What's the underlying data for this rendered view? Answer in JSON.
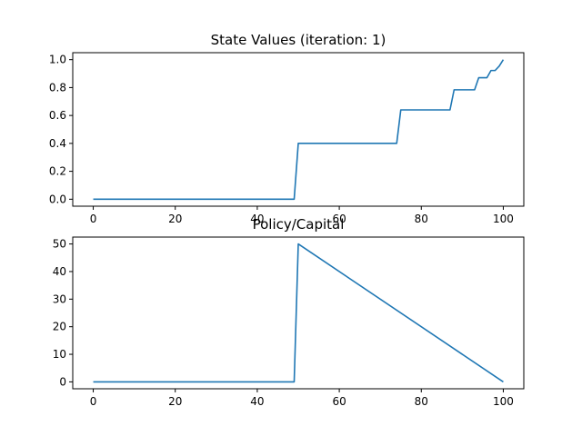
{
  "chart_data": [
    {
      "type": "line",
      "title": "State Values (iteration: 1)",
      "xlabel": "",
      "ylabel": "",
      "xlim": [
        -5,
        105
      ],
      "ylim": [
        -0.05,
        1.05
      ],
      "xticks": [
        0,
        20,
        40,
        60,
        80,
        100
      ],
      "xtick_labels": [
        "0",
        "20",
        "40",
        "60",
        "80",
        "100"
      ],
      "yticks": [
        0.0,
        0.2,
        0.4,
        0.6,
        0.8,
        1.0
      ],
      "ytick_labels": [
        "0.0",
        "0.2",
        "0.4",
        "0.6",
        "0.8",
        "1.0"
      ],
      "grid": false,
      "series": [
        {
          "color": "#1f77b4",
          "x": [
            0,
            49,
            50,
            74,
            75,
            87,
            88,
            93,
            94,
            96,
            97,
            98,
            99,
            100
          ],
          "y": [
            0,
            0,
            0.4,
            0.4,
            0.64,
            0.64,
            0.784,
            0.784,
            0.8704,
            0.8704,
            0.92224,
            0.92224,
            0.953344,
            1.0
          ]
        }
      ]
    },
    {
      "type": "line",
      "title": "Policy/Capital",
      "xlabel": "",
      "ylabel": "",
      "xlim": [
        -5,
        105
      ],
      "ylim": [
        -2.5,
        52.5
      ],
      "xticks": [
        0,
        20,
        40,
        60,
        80,
        100
      ],
      "xtick_labels": [
        "0",
        "20",
        "40",
        "60",
        "80",
        "100"
      ],
      "yticks": [
        0,
        10,
        20,
        30,
        40,
        50
      ],
      "ytick_labels": [
        "0",
        "10",
        "20",
        "30",
        "40",
        "50"
      ],
      "grid": false,
      "series": [
        {
          "color": "#1f77b4",
          "x": [
            0,
            49,
            50,
            100
          ],
          "y": [
            0,
            0,
            50,
            0
          ]
        }
      ]
    }
  ]
}
